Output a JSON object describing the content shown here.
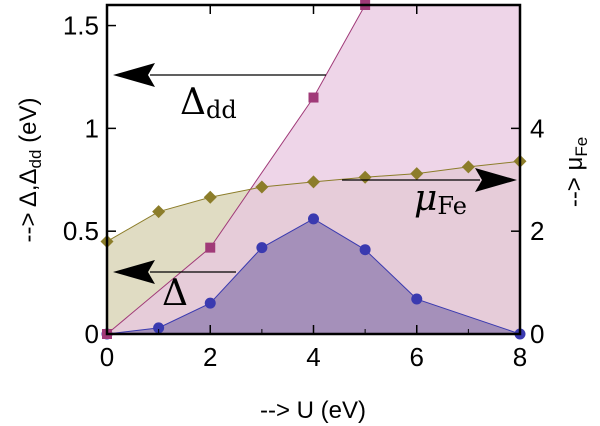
{
  "chart_data": {
    "type": "line",
    "xlabel": "--> U (eV)",
    "ylabel_left_prefix": "--> Δ,Δ",
    "ylabel_left_sub": "dd",
    "ylabel_left_suffix": " (eV)",
    "ylabel_right_prefix": "--> μ",
    "ylabel_right_sub": "Fe",
    "xlim": [
      0,
      8
    ],
    "ylim_left": [
      0,
      1.6
    ],
    "ylim_right": [
      0,
      6.4
    ],
    "x_ticks": [
      "0",
      "2",
      "4",
      "6",
      "8"
    ],
    "y_ticks_left": [
      "0",
      "0.5",
      "1",
      "1.5"
    ],
    "y_ticks_right": [
      "0",
      "2",
      "4"
    ],
    "grid": false,
    "series": [
      {
        "axis": "left",
        "color": "#3a3ab0",
        "fill": "#6f5fa0",
        "marker": "circle",
        "x": [
          0,
          1,
          2,
          3,
          4,
          5,
          6,
          8
        ],
        "y": [
          0.0,
          0.03,
          0.15,
          0.42,
          0.56,
          0.41,
          0.17,
          0.0
        ]
      },
      {
        "axis": "left",
        "color": "#a03a78",
        "fill": "#e8c7e0",
        "marker": "square",
        "x": [
          0,
          2,
          4,
          5
        ],
        "y": [
          0.0,
          0.42,
          1.15,
          1.6
        ]
      },
      {
        "axis": "right",
        "color": "#8c7d2a",
        "fill": "#d8d3b4",
        "marker": "diamond",
        "x": [
          0,
          1,
          2,
          3,
          4,
          5,
          6,
          7,
          8
        ],
        "y": [
          1.8,
          2.38,
          2.66,
          2.86,
          2.96,
          3.05,
          3.12,
          3.25,
          3.36
        ]
      }
    ],
    "annotations": [
      {
        "text": "Δ",
        "sub": "dd",
        "points_to": "left"
      },
      {
        "text": "Δ",
        "sub": "",
        "points_to": "left"
      },
      {
        "text": "μ",
        "sub": "Fe",
        "points_to": "right"
      }
    ]
  }
}
